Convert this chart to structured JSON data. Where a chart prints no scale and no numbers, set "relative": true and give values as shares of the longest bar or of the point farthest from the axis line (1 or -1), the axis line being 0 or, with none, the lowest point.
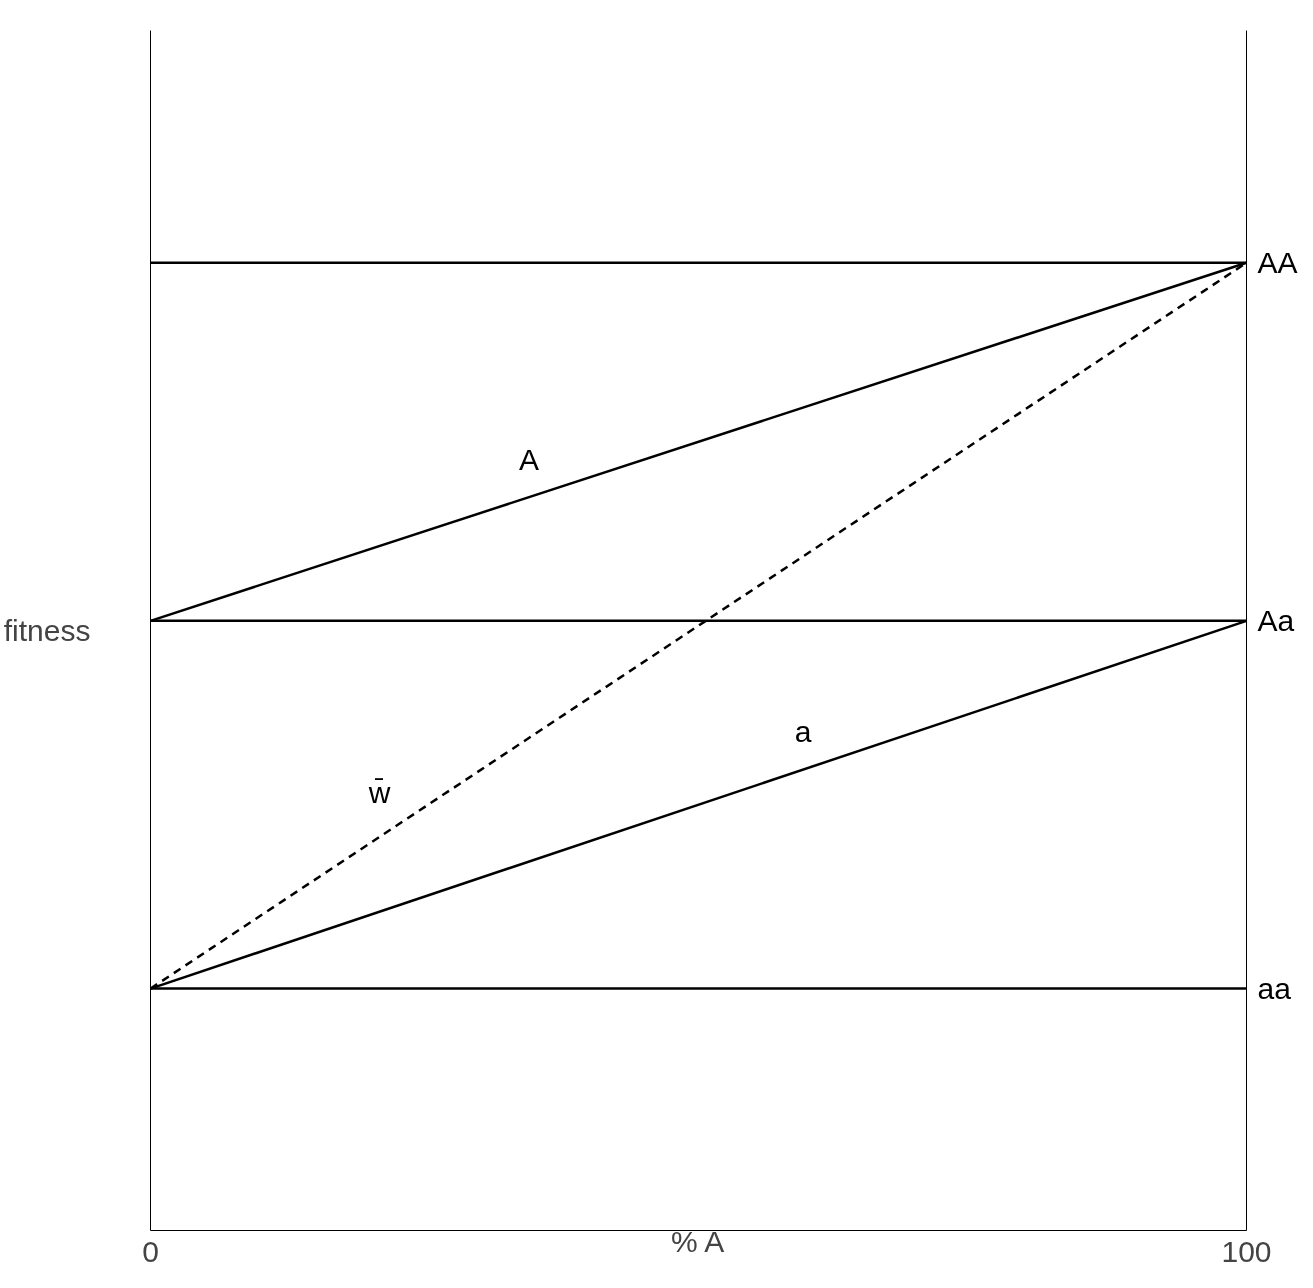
{
  "chart_data": {
    "type": "line",
    "relative": true,
    "xlabel": "% A",
    "ylabel": "fitness",
    "xlim": [
      0,
      100
    ],
    "xticks": [
      0,
      100
    ],
    "grid": false,
    "marker": "none",
    "x": [
      0,
      100
    ],
    "ref_lines": [
      {
        "axis": "y",
        "value": 1.0,
        "label": "AA",
        "color": "#000000",
        "line_style": "solid"
      },
      {
        "axis": "y",
        "value": 0.63,
        "label": "Aa",
        "color": "#000000",
        "line_style": "solid"
      },
      {
        "axis": "y",
        "value": 0.25,
        "label": "aa",
        "color": "#000000",
        "line_style": "solid"
      }
    ],
    "series": [
      {
        "name": "A",
        "color": "#000000",
        "values": [
          0.63,
          1.0
        ],
        "line_style": "solid"
      },
      {
        "name": "a",
        "color": "#000000",
        "values": [
          0.25,
          0.63
        ],
        "line_style": "solid"
      },
      {
        "name": "w̄",
        "color": "#000000",
        "values": [
          0.25,
          1.0
        ],
        "line_style": "dashed"
      }
    ]
  }
}
